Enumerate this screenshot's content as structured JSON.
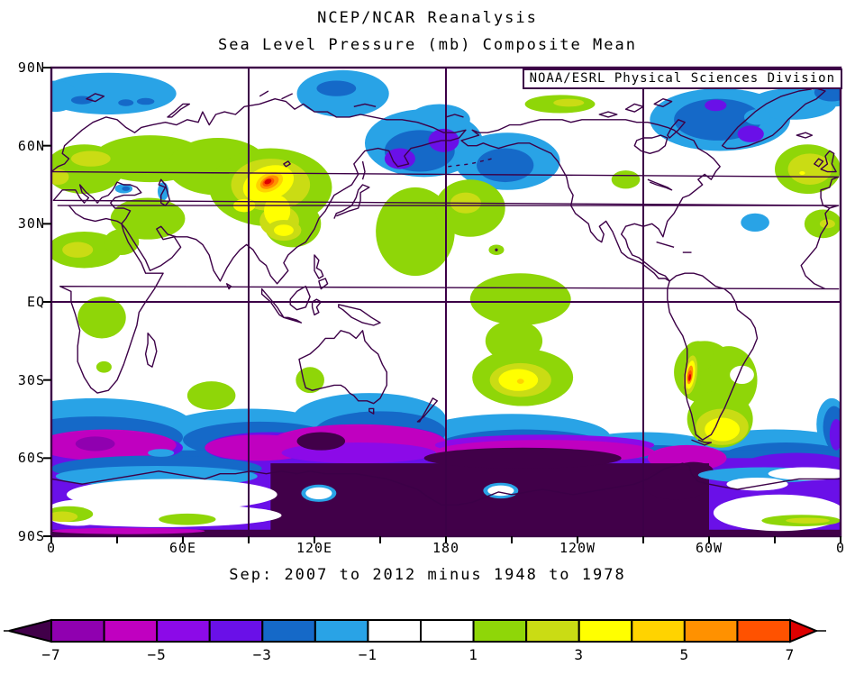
{
  "header": {
    "title_line1": "NCEP/NCAR Reanalysis",
    "title_line2": "Sea Level Pressure (mb) Composite Mean"
  },
  "map": {
    "credit": "NOAA/ESRL Physical Sciences Division",
    "caption": "Sep: 2007 to 2012 minus 1948 to 1978"
  },
  "axes": {
    "lat_tick_labels": [
      "90N",
      "60N",
      "30N",
      "EQ",
      "30S",
      "60S",
      "90S"
    ],
    "lon_tick_labels": [
      "0",
      "60E",
      "120E",
      "180",
      "120W",
      "60W",
      "0"
    ]
  },
  "chart_data": {
    "type": "heatmap",
    "subtype": "filled-contour world map",
    "projection": "equirectangular, longitude 0E to 360E left-to-right, 180 at center",
    "title": "NCEP/NCAR Reanalysis",
    "subtitle": "Sea Level Pressure (mb) Composite Mean",
    "caption": "Sep: 2007 to 2012 minus 1948 to 1978",
    "credit": "NOAA/ESRL Physical Sciences Division",
    "units": "mb",
    "lon_range": [
      0,
      360
    ],
    "lat_range": [
      -90,
      90
    ],
    "grid": {
      "meridians_deg_east": [
        90,
        180,
        270
      ],
      "parallels_deg": [
        0
      ],
      "axis_ticks_every_deg": 30
    },
    "colorbar": {
      "orientation": "horizontal",
      "open_ended": true,
      "levels": [
        -7,
        -6,
        -5,
        -4,
        -3,
        -2,
        -1,
        0,
        1,
        2,
        3,
        4,
        5,
        6,
        7
      ],
      "colors": [
        "#410049",
        "#9000B0",
        "#C000C0",
        "#8C0AE8",
        "#6A10E8",
        "#1569C8",
        "#29A3E6",
        "#FFFFFF",
        "#FFFFFF",
        "#8FD608",
        "#CADC14",
        "#FFFF00",
        "#FFD300",
        "#FF9100",
        "#FF5200",
        "#DD0000"
      ],
      "tick_labels": [
        "-7",
        "-5",
        "-3",
        "-1",
        "1",
        "3",
        "5",
        "7"
      ]
    },
    "line_color": "#3C0047",
    "features": [
      {
        "region": "Mongolia / interior East Asia high",
        "center_lon_lat": [
          100,
          46
        ],
        "anomaly_mb": "+5 to +7 core, +1 to +4 surrounding 60E-130E, 25N-60N"
      },
      {
        "region": "Europe / western Russia / Middle East / Sahara",
        "anomaly_mb": "+1 to +3"
      },
      {
        "region": "Arctic Ocean north of Scandinavia / Barents",
        "anomaly_mb": "-1 to -3"
      },
      {
        "region": "NE Siberia / Okhotsk / Bering",
        "anomaly_mb": "-1 to -5 (purple cores near 55-65N, 150E-180)"
      },
      {
        "region": "Gulf of Alaska / North Pacific",
        "anomaly_mb": "-1 to -3"
      },
      {
        "region": "Greenland / Baffin Bay / Davis Strait",
        "anomaly_mb": "-1 to -5 (purple cores near 62-77N, 60W-35W)"
      },
      {
        "region": "British Isles / NE Atlantic",
        "anomaly_mb": "+1 to +3"
      },
      {
        "region": "Subtropical central North Pacific (150E-155W, 10-45N)",
        "anomaly_mb": "+1 to +3"
      },
      {
        "region": "Mid-Atlantic (~30N, 40W)",
        "anomaly_mb": "-1 to -2"
      },
      {
        "region": "Equatorial central Pacific column (165W-125W)",
        "anomaly_mb": "+1 to +2"
      },
      {
        "region": "South-central Pacific (~30S, 145W)",
        "anomaly_mb": "+1 to +5"
      },
      {
        "region": "Central Andes streak (~29S, 69W)",
        "anomaly_mb": "+5 to +7"
      },
      {
        "region": "Argentina / SW Atlantic (~48S, 55W)",
        "anomaly_mb": "+1 to +4"
      },
      {
        "region": "Central Africa (0-12S, 14-32E)",
        "anomaly_mb": "+1 to +2"
      },
      {
        "region": "South Indian Ocean (~36S, 73E) and Western Australia",
        "anomaly_mb": "+1 to +2"
      },
      {
        "region": "Circum-Antarctic Southern Ocean belt (45S-65S)",
        "anomaly_mb": "-1 to -7"
      },
      {
        "region": "Antarctica, Ross/Amundsen/Weddell sector (100E eastward to 60W)",
        "anomaly_mb": "below -7"
      },
      {
        "region": "Coastal East Antarctica patches (0-100E, 70-85S) and 30W-0 near pole",
        "anomaly_mb": "-1 to +2 (white/green gaps)"
      }
    ]
  }
}
